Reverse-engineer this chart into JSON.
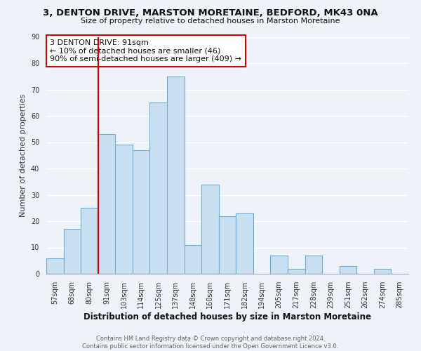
{
  "title": "3, DENTON DRIVE, MARSTON MORETAINE, BEDFORD, MK43 0NA",
  "subtitle": "Size of property relative to detached houses in Marston Moretaine",
  "xlabel": "Distribution of detached houses by size in Marston Moretaine",
  "ylabel": "Number of detached properties",
  "footer_line1": "Contains HM Land Registry data © Crown copyright and database right 2024.",
  "footer_line2": "Contains public sector information licensed under the Open Government Licence v3.0.",
  "bin_labels": [
    "57sqm",
    "68sqm",
    "80sqm",
    "91sqm",
    "103sqm",
    "114sqm",
    "125sqm",
    "137sqm",
    "148sqm",
    "160sqm",
    "171sqm",
    "182sqm",
    "194sqm",
    "205sqm",
    "217sqm",
    "228sqm",
    "239sqm",
    "251sqm",
    "262sqm",
    "274sqm",
    "285sqm"
  ],
  "bar_values": [
    6,
    17,
    25,
    53,
    49,
    47,
    65,
    75,
    11,
    34,
    22,
    23,
    0,
    7,
    2,
    7,
    0,
    3,
    0,
    2,
    0
  ],
  "bar_color": "#c9dff0",
  "bar_edge_color": "#6aaed6",
  "vline_x_index": 3,
  "vline_color": "#cc0000",
  "annotation_title": "3 DENTON DRIVE: 91sqm",
  "annotation_line1": "← 10% of detached houses are smaller (46)",
  "annotation_line2": "90% of semi-detached houses are larger (409) →",
  "annotation_box_edge": "#cc0000",
  "ylim": [
    0,
    90
  ],
  "yticks": [
    0,
    10,
    20,
    30,
    40,
    50,
    60,
    70,
    80,
    90
  ],
  "bg_color": "#eef2f9",
  "title_fontsize": 9.5,
  "subtitle_fontsize": 8.0,
  "ylabel_fontsize": 8.0,
  "xlabel_fontsize": 8.5,
  "tick_fontsize": 7.0,
  "footer_fontsize": 6.0,
  "ann_fontsize": 8.0
}
